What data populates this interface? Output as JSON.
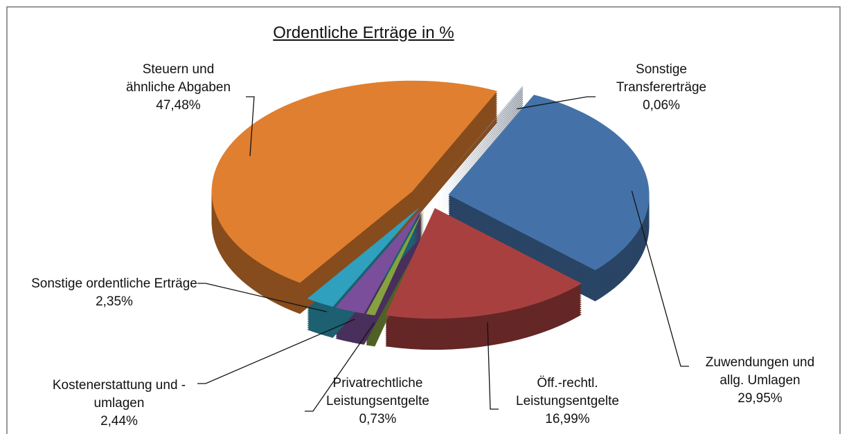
{
  "chart_data": {
    "type": "pie",
    "title": "Ordentliche Erträge in %",
    "categories": [
      "Sonstige Transfererträge",
      "Zuwendungen und allg. Umlagen",
      "Öff.-rechtl. Leistungsentgelte",
      "Privatrechtliche Leistungsentgelte",
      "Kostenerstattung und -umlagen",
      "Sonstige ordentliche Erträge",
      "Steuern und ähnliche Abgaben"
    ],
    "values": [
      0.06,
      29.95,
      16.99,
      0.73,
      2.44,
      2.35,
      47.48
    ],
    "value_labels": [
      "0,06%",
      "29,95%",
      "16,99%",
      "0,73%",
      "2,44%",
      "2,35%",
      "47,48%"
    ],
    "colors": [
      "#7f93b3",
      "#4472a8",
      "#a94040",
      "#86a23e",
      "#7a4e9a",
      "#2fa0bd",
      "#e07f30"
    ]
  }
}
